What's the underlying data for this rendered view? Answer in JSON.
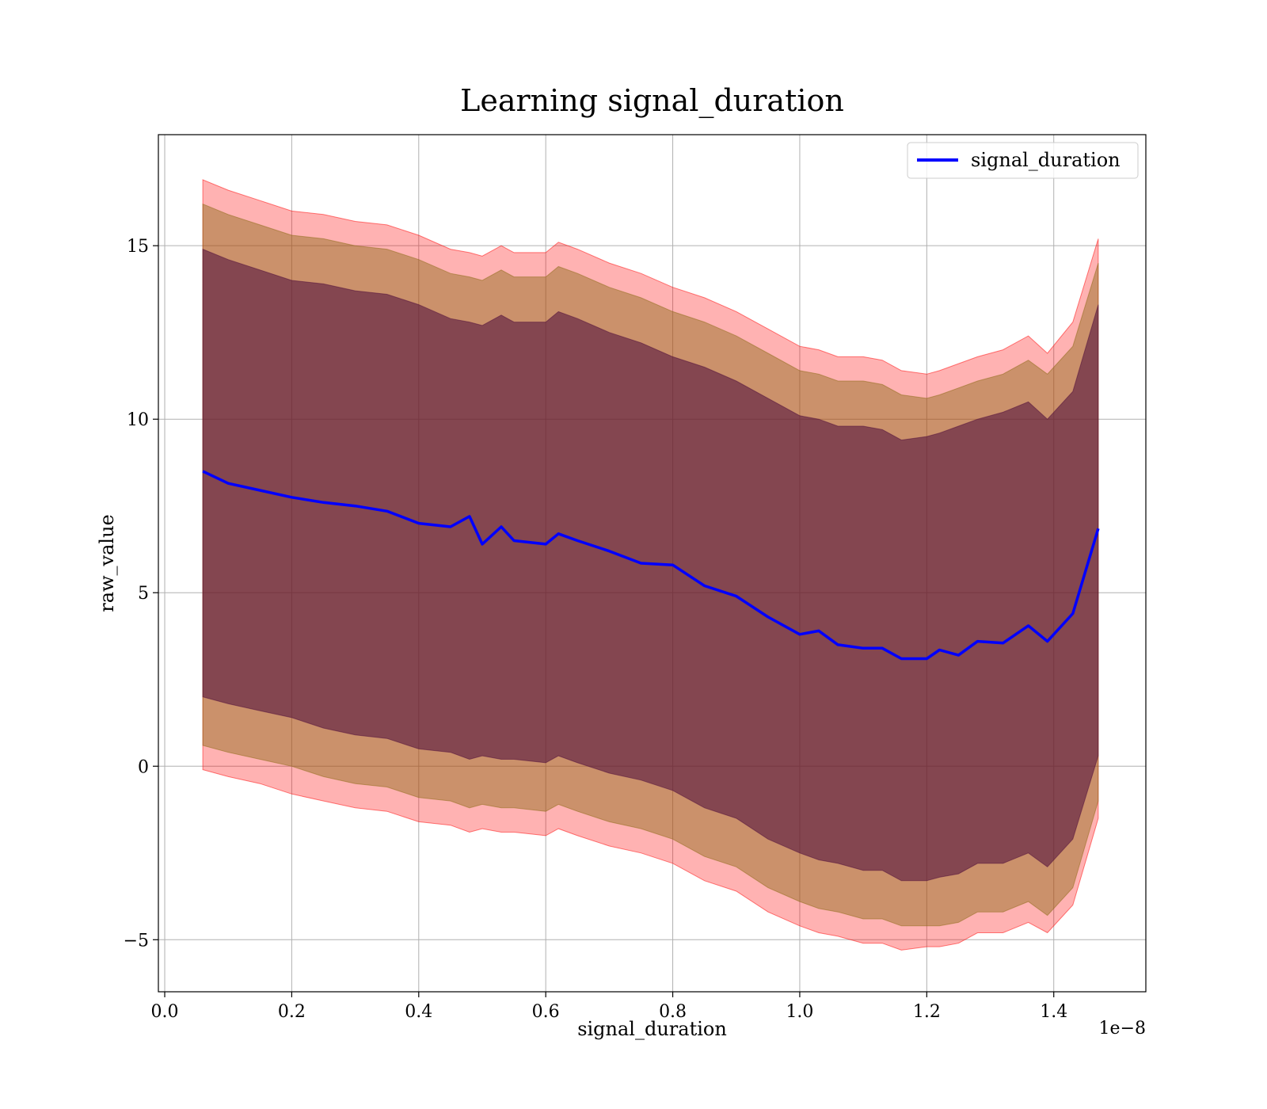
{
  "chart_data": {
    "type": "line",
    "title": "Learning signal_duration",
    "xlabel": "signal_duration",
    "ylabel": "raw_value",
    "x_offset_label": "1e−8",
    "xlim": [
      -0.01,
      1.545
    ],
    "ylim": [
      -6.5,
      18.2
    ],
    "xticks": [
      0.0,
      0.2,
      0.4,
      0.6,
      0.8,
      1.0,
      1.2,
      1.4
    ],
    "xtick_labels": [
      "0.0",
      "0.2",
      "0.4",
      "0.6",
      "0.8",
      "1.0",
      "1.2",
      "1.4"
    ],
    "yticks": [
      -5,
      0,
      5,
      10,
      15
    ],
    "ytick_labels": [
      "−5",
      "0",
      "5",
      "10",
      "15"
    ],
    "grid": true,
    "legend_position": "top-right",
    "colors": {
      "line": "#0000ff",
      "band_outer": "#ff0000",
      "band_middle": "#8b6914",
      "band_inner": "#4b0a3a",
      "grid": "#b0b0b0"
    },
    "series": [
      {
        "name": "signal_duration",
        "x": [
          0.06,
          0.1,
          0.15,
          0.2,
          0.25,
          0.3,
          0.35,
          0.4,
          0.45,
          0.48,
          0.5,
          0.53,
          0.55,
          0.6,
          0.62,
          0.65,
          0.7,
          0.75,
          0.8,
          0.85,
          0.9,
          0.95,
          1.0,
          1.03,
          1.06,
          1.1,
          1.13,
          1.16,
          1.2,
          1.22,
          1.25,
          1.28,
          1.32,
          1.36,
          1.39,
          1.43,
          1.47
        ],
        "y": [
          8.5,
          8.15,
          7.95,
          7.75,
          7.6,
          7.5,
          7.35,
          7.0,
          6.9,
          7.2,
          6.4,
          6.9,
          6.5,
          6.4,
          6.7,
          6.5,
          6.2,
          5.85,
          5.8,
          5.2,
          4.9,
          4.3,
          3.8,
          3.9,
          3.5,
          3.4,
          3.4,
          3.1,
          3.1,
          3.35,
          3.2,
          3.6,
          3.55,
          4.05,
          3.6,
          4.4,
          6.85
        ]
      }
    ],
    "bands": [
      {
        "level": "outer",
        "lower": [
          -0.1,
          -0.3,
          -0.5,
          -0.8,
          -1.0,
          -1.2,
          -1.3,
          -1.6,
          -1.7,
          -1.9,
          -1.8,
          -1.9,
          -1.9,
          -2.0,
          -1.8,
          -2.0,
          -2.3,
          -2.5,
          -2.8,
          -3.3,
          -3.6,
          -4.2,
          -4.6,
          -4.8,
          -4.9,
          -5.1,
          -5.1,
          -5.3,
          -5.2,
          -5.2,
          -5.1,
          -4.8,
          -4.8,
          -4.5,
          -4.8,
          -4.0,
          -1.5
        ],
        "upper": [
          16.9,
          16.6,
          16.3,
          16.0,
          15.9,
          15.7,
          15.6,
          15.3,
          14.9,
          14.8,
          14.7,
          15.0,
          14.8,
          14.8,
          15.1,
          14.9,
          14.5,
          14.2,
          13.8,
          13.5,
          13.1,
          12.6,
          12.1,
          12.0,
          11.8,
          11.8,
          11.7,
          11.4,
          11.3,
          11.4,
          11.6,
          11.8,
          12.0,
          12.4,
          11.9,
          12.8,
          15.2
        ]
      },
      {
        "level": "middle",
        "lower": [
          0.6,
          0.4,
          0.2,
          0.0,
          -0.3,
          -0.5,
          -0.6,
          -0.9,
          -1.0,
          -1.2,
          -1.1,
          -1.2,
          -1.2,
          -1.3,
          -1.1,
          -1.3,
          -1.6,
          -1.8,
          -2.1,
          -2.6,
          -2.9,
          -3.5,
          -3.9,
          -4.1,
          -4.2,
          -4.4,
          -4.4,
          -4.6,
          -4.6,
          -4.6,
          -4.5,
          -4.2,
          -4.2,
          -3.9,
          -4.3,
          -3.5,
          -1.0
        ],
        "upper": [
          16.2,
          15.9,
          15.6,
          15.3,
          15.2,
          15.0,
          14.9,
          14.6,
          14.2,
          14.1,
          14.0,
          14.3,
          14.1,
          14.1,
          14.4,
          14.2,
          13.8,
          13.5,
          13.1,
          12.8,
          12.4,
          11.9,
          11.4,
          11.3,
          11.1,
          11.1,
          11.0,
          10.7,
          10.6,
          10.7,
          10.9,
          11.1,
          11.3,
          11.7,
          11.3,
          12.1,
          14.5
        ]
      },
      {
        "level": "inner",
        "lower": [
          2.0,
          1.8,
          1.6,
          1.4,
          1.1,
          0.9,
          0.8,
          0.5,
          0.4,
          0.2,
          0.3,
          0.2,
          0.2,
          0.1,
          0.3,
          0.1,
          -0.2,
          -0.4,
          -0.7,
          -1.2,
          -1.5,
          -2.1,
          -2.5,
          -2.7,
          -2.8,
          -3.0,
          -3.0,
          -3.3,
          -3.3,
          -3.2,
          -3.1,
          -2.8,
          -2.8,
          -2.5,
          -2.9,
          -2.1,
          0.3
        ],
        "upper": [
          14.9,
          14.6,
          14.3,
          14.0,
          13.9,
          13.7,
          13.6,
          13.3,
          12.9,
          12.8,
          12.7,
          13.0,
          12.8,
          12.8,
          13.1,
          12.9,
          12.5,
          12.2,
          11.8,
          11.5,
          11.1,
          10.6,
          10.1,
          10.0,
          9.8,
          9.8,
          9.7,
          9.4,
          9.5,
          9.6,
          9.8,
          10.0,
          10.2,
          10.5,
          10.0,
          10.8,
          13.3
        ]
      }
    ]
  }
}
